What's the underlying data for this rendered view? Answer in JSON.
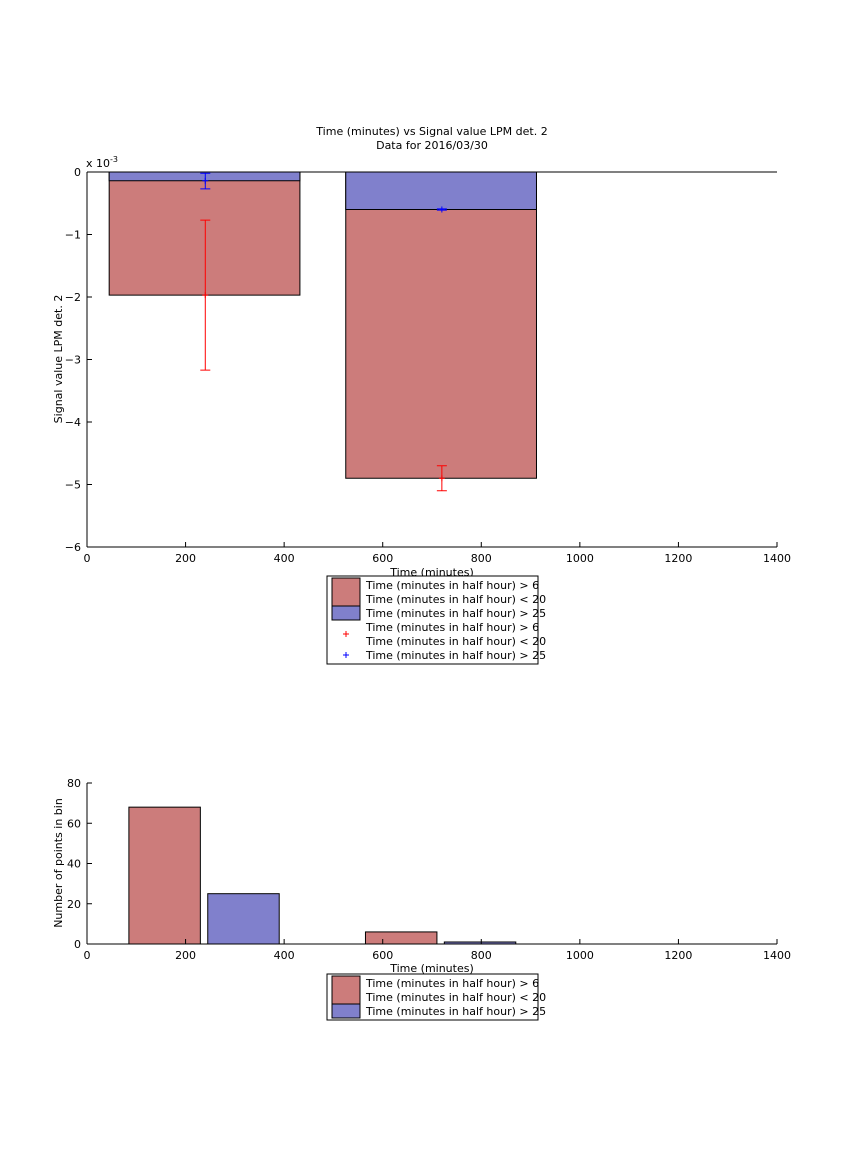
{
  "colors": {
    "red_fill": "#cc7c7b",
    "blue_fill": "#8080cc",
    "red_marker": "#ff0000",
    "blue_marker": "#0000ff",
    "edge": "#000000"
  },
  "chart_data": [
    {
      "type": "bar",
      "title": "Time (minutes) vs Signal value LPM det. 2",
      "subtitle": "Data for 2016/03/30",
      "xlabel": "Time (minutes)",
      "ylabel": "Signal value LPM det. 2",
      "exponent_label": "x 10",
      "exponent_power": "-3",
      "xlim": [
        0,
        1400
      ],
      "ylim": [
        -0.006,
        0
      ],
      "x_ticks": [
        0,
        200,
        400,
        600,
        800,
        1000,
        1200,
        1400
      ],
      "x_tick_labels": [
        "0",
        "200",
        "400",
        "600",
        "800",
        "1000",
        "1200",
        "1400"
      ],
      "y_ticks": [
        0,
        -0.001,
        -0.002,
        -0.003,
        -0.004,
        -0.005,
        -0.006
      ],
      "y_tick_labels": [
        "0",
        "−1",
        "−2",
        "−3",
        "−4",
        "−5",
        "−6"
      ],
      "grid": false,
      "bars": [
        {
          "series": "red",
          "x_start": 45,
          "x_end": 432,
          "value": -0.00197
        },
        {
          "series": "blue",
          "x_start": 45,
          "x_end": 432,
          "value": -0.00014
        },
        {
          "series": "red",
          "x_start": 525,
          "x_end": 912,
          "value": -0.0049
        },
        {
          "series": "blue",
          "x_start": 525,
          "x_end": 912,
          "value": -0.0006
        }
      ],
      "errorbars": [
        {
          "series": "red",
          "x": 240,
          "y": -0.00197,
          "low": -0.00317,
          "high": -0.00077
        },
        {
          "series": "blue",
          "x": 240,
          "y": -0.00014,
          "low": -0.00027,
          "high": -2e-05
        },
        {
          "series": "red",
          "x": 720,
          "y": -0.0049,
          "low": -0.0051,
          "high": -0.0047
        },
        {
          "series": "blue",
          "x": 720,
          "y": -0.0006,
          "low": -0.00061,
          "high": -0.00059
        }
      ],
      "legend": {
        "placement": "below",
        "entries": [
          {
            "kind": "patch",
            "series": "red",
            "lines": [
              "Time (minutes in half hour) > 6",
              "Time (minutes in half hour) < 20"
            ]
          },
          {
            "kind": "patch",
            "series": "blue",
            "lines": [
              "Time (minutes in half hour) > 25"
            ]
          },
          {
            "kind": "marker",
            "series": "red",
            "lines": [
              "Time (minutes in half hour) > 6",
              "Time (minutes in half hour) < 20"
            ]
          },
          {
            "kind": "marker",
            "series": "blue",
            "lines": [
              "Time (minutes in half hour) > 25"
            ]
          }
        ]
      }
    },
    {
      "type": "bar",
      "title": "",
      "xlabel": "Time (minutes)",
      "ylabel": "Number of points in bin",
      "xlim": [
        0,
        1400
      ],
      "ylim": [
        0,
        80
      ],
      "x_ticks": [
        0,
        200,
        400,
        600,
        800,
        1000,
        1200,
        1400
      ],
      "x_tick_labels": [
        "0",
        "200",
        "400",
        "600",
        "800",
        "1000",
        "1200",
        "1400"
      ],
      "y_ticks": [
        0,
        20,
        40,
        60,
        80
      ],
      "y_tick_labels": [
        "0",
        "20",
        "40",
        "60",
        "80"
      ],
      "grid": false,
      "bars": [
        {
          "series": "red",
          "x_start": 85,
          "x_end": 230,
          "value": 68
        },
        {
          "series": "blue",
          "x_start": 245,
          "x_end": 390,
          "value": 25
        },
        {
          "series": "red",
          "x_start": 565,
          "x_end": 710,
          "value": 6
        },
        {
          "series": "blue",
          "x_start": 725,
          "x_end": 870,
          "value": 1
        }
      ],
      "legend": {
        "placement": "below",
        "entries": [
          {
            "kind": "patch",
            "series": "red",
            "lines": [
              "Time (minutes in half hour) > 6",
              "Time (minutes in half hour) < 20"
            ]
          },
          {
            "kind": "patch",
            "series": "blue",
            "lines": [
              "Time (minutes in half hour) > 25"
            ]
          }
        ]
      }
    }
  ]
}
